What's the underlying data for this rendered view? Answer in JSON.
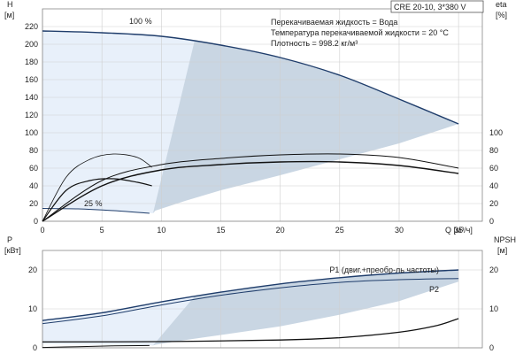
{
  "chart_data": [
    {
      "type": "line",
      "title_box": "CRE 20-10, 3*380 V",
      "notes": [
        "Перекачиваемая жидкость = Вода",
        "Температура перекачиваемой жидкости = 20 °C",
        "Плотность = 998.2 кг/м³"
      ],
      "ylabel": [
        "H",
        "[м]"
      ],
      "y2label": [
        "eta",
        "[%]"
      ],
      "xlabel": "Q [м³/ч]",
      "xlim": [
        0,
        37
      ],
      "ylim": [
        0,
        240
      ],
      "x_ticks": [
        "0",
        "5",
        "10",
        "15",
        "20",
        "25",
        "30",
        "35"
      ],
      "y_ticks": [
        "0",
        "20",
        "40",
        "60",
        "80",
        "100",
        "120",
        "140",
        "160",
        "180",
        "200",
        "220"
      ],
      "y2_ticks": [
        "0",
        "20",
        "40",
        "60",
        "80",
        "100"
      ],
      "curve_labels": [
        {
          "text": "100 %",
          "x": 7.3,
          "y": 223
        },
        {
          "text": "25 %",
          "x": 3.5,
          "y": 17
        }
      ],
      "operating_area": {
        "upper": [
          [
            0,
            215
          ],
          [
            5,
            213
          ],
          [
            10,
            209
          ],
          [
            15,
            199
          ],
          [
            20,
            185
          ],
          [
            25,
            165
          ],
          [
            30,
            138
          ],
          [
            35,
            110
          ]
        ],
        "lower": [
          [
            35,
            110
          ],
          [
            30,
            88
          ],
          [
            25,
            70
          ],
          [
            20,
            52
          ],
          [
            15,
            35
          ],
          [
            12,
            23
          ],
          [
            9.5,
            12
          ],
          [
            9.3,
            9
          ]
        ]
      },
      "light_region": [
        [
          0,
          215
        ],
        [
          5,
          213
        ],
        [
          10,
          209
        ],
        [
          12.8,
          204
        ],
        [
          9.3,
          9
        ],
        [
          8,
          10
        ],
        [
          5,
          13
        ],
        [
          2,
          15
        ],
        [
          0,
          16
        ]
      ],
      "series": [
        {
          "name": "",
          "role": "head-100",
          "x": [
            0,
            5,
            10,
            15,
            20,
            25,
            30,
            35
          ],
          "y": [
            215,
            213,
            209,
            199,
            185,
            165,
            138,
            110
          ]
        },
        {
          "name": "",
          "role": "head-25",
          "x": [
            0,
            3,
            6,
            9
          ],
          "y": [
            14.5,
            14,
            12,
            9
          ]
        },
        {
          "name": "",
          "role": "eta-100",
          "x": [
            0,
            5,
            10,
            15,
            20,
            25,
            30,
            35
          ],
          "y": [
            0,
            46,
            64,
            71,
            75,
            76,
            72,
            60
          ]
        },
        {
          "name": "",
          "role": "eta-100b",
          "x": [
            0,
            5,
            10,
            15,
            20,
            25,
            30,
            35
          ],
          "y": [
            0,
            40,
            58,
            64,
            67,
            67,
            63,
            54
          ]
        },
        {
          "name": "",
          "role": "eta-25",
          "x": [
            0,
            2,
            4,
            6,
            8,
            9.2
          ],
          "y": [
            0,
            50,
            70,
            76,
            72,
            61
          ]
        },
        {
          "name": "",
          "role": "eta-25b",
          "x": [
            0,
            2,
            4,
            6,
            8,
            9.2
          ],
          "y": [
            0,
            35,
            46,
            48,
            44,
            40
          ]
        }
      ]
    },
    {
      "type": "line",
      "ylabel": [
        "P",
        "[кВт]"
      ],
      "y2label": [
        "NPSH",
        "[м]"
      ],
      "xlim": [
        0,
        37
      ],
      "ylim": [
        0,
        25
      ],
      "y_ticks": [
        "0",
        "10",
        "20"
      ],
      "y2_ticks": [
        "0",
        "10",
        "20"
      ],
      "operating_area": {
        "upper": [
          [
            0,
            7
          ],
          [
            5,
            9
          ],
          [
            10,
            11.8
          ],
          [
            15,
            14.3
          ],
          [
            20,
            16.4
          ],
          [
            25,
            18
          ],
          [
            30,
            19.2
          ],
          [
            35,
            20
          ]
        ],
        "lower": [
          [
            35,
            17
          ],
          [
            30,
            12
          ],
          [
            25,
            8.5
          ],
          [
            20,
            5.5
          ],
          [
            15,
            3.3
          ],
          [
            12,
            2
          ],
          [
            9.5,
            0.8
          ],
          [
            9.3,
            0.6
          ]
        ]
      },
      "light_region": [
        [
          0,
          7
        ],
        [
          5,
          9
        ],
        [
          10,
          11.8
        ],
        [
          12.8,
          13.2
        ],
        [
          9.3,
          0.6
        ],
        [
          5,
          0.8
        ],
        [
          0,
          1
        ]
      ],
      "series": [
        {
          "name": "P1 (двиг.+преобр-ль частоты)",
          "x": [
            0,
            5,
            10,
            15,
            20,
            25,
            30,
            35
          ],
          "y": [
            7,
            9,
            11.8,
            14.3,
            16.4,
            18,
            19.2,
            20
          ]
        },
        {
          "name": "P2",
          "x": [
            0,
            5,
            10,
            15,
            20,
            25,
            30,
            35
          ],
          "y": [
            6.2,
            8.2,
            11,
            13.5,
            15.4,
            16.8,
            17.5,
            17.8
          ]
        },
        {
          "name": "",
          "role": "npsh",
          "x": [
            0,
            10,
            20,
            25,
            30,
            33,
            35
          ],
          "y": [
            1.5,
            1.6,
            2,
            2.6,
            4,
            5.6,
            7.5
          ]
        },
        {
          "name": "",
          "role": "p-25",
          "x": [
            0,
            3,
            6,
            9
          ],
          "y": [
            0.1,
            0.3,
            0.5,
            0.6
          ]
        }
      ]
    }
  ]
}
